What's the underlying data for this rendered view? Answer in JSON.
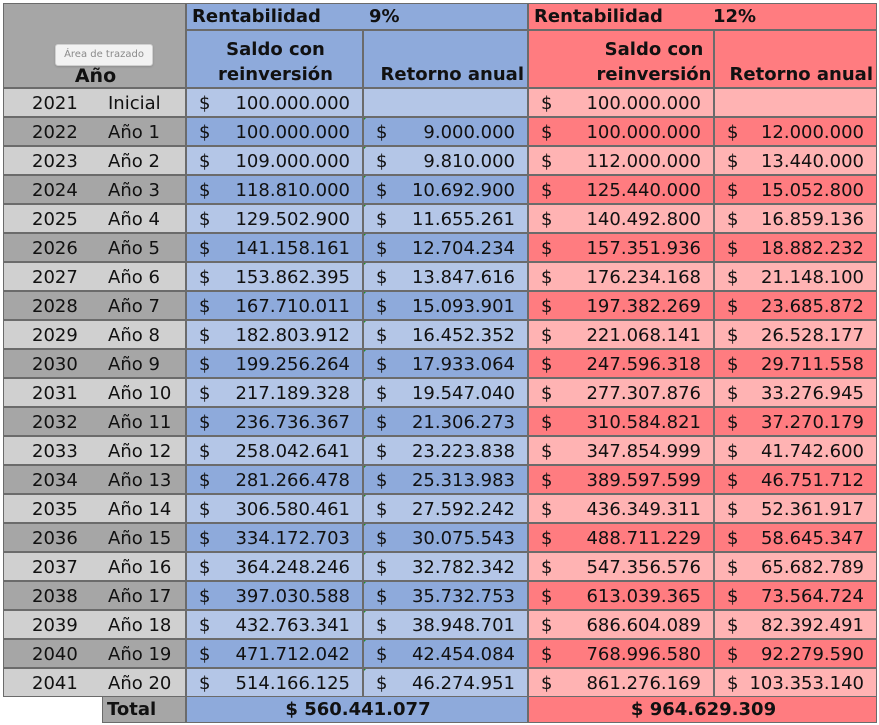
{
  "header": {
    "year_col_label": "Año",
    "tooltip": "Área de trazado",
    "scenario_9": {
      "label": "Rentabilidad",
      "rate": "9%",
      "col_balance": [
        "Saldo con",
        "reinversión"
      ],
      "col_return": "Retorno anual"
    },
    "scenario_12": {
      "label": "Rentabilidad",
      "rate": "12%",
      "col_balance": [
        "Saldo con",
        "reinversión"
      ],
      "col_return": "Retorno anual"
    }
  },
  "currency_symbol": "$",
  "colors": {
    "blue_dark": "#8eaadb",
    "blue_light": "#b4c6e7",
    "red_dark": "#ff7c80",
    "red_light": "#ffb3b3",
    "gray_dark": "#a6a6a6",
    "gray_light": "#d0d0d0",
    "header_gray": "#a6a6a6"
  },
  "rows": [
    {
      "year": "2021",
      "label": "Inicial",
      "b9": "100.000.000",
      "r9": "",
      "b12": "100.000.000",
      "r12": ""
    },
    {
      "year": "2022",
      "label": "Año 1",
      "b9": "100.000.000",
      "r9": "9.000.000",
      "b12": "100.000.000",
      "r12": "12.000.000"
    },
    {
      "year": "2023",
      "label": "Año 2",
      "b9": "109.000.000",
      "r9": "9.810.000",
      "b12": "112.000.000",
      "r12": "13.440.000"
    },
    {
      "year": "2024",
      "label": "Año 3",
      "b9": "118.810.000",
      "r9": "10.692.900",
      "b12": "125.440.000",
      "r12": "15.052.800"
    },
    {
      "year": "2025",
      "label": "Año 4",
      "b9": "129.502.900",
      "r9": "11.655.261",
      "b12": "140.492.800",
      "r12": "16.859.136"
    },
    {
      "year": "2026",
      "label": "Año 5",
      "b9": "141.158.161",
      "r9": "12.704.234",
      "b12": "157.351.936",
      "r12": "18.882.232"
    },
    {
      "year": "2027",
      "label": "Año 6",
      "b9": "153.862.395",
      "r9": "13.847.616",
      "b12": "176.234.168",
      "r12": "21.148.100"
    },
    {
      "year": "2028",
      "label": "Año 7",
      "b9": "167.710.011",
      "r9": "15.093.901",
      "b12": "197.382.269",
      "r12": "23.685.872"
    },
    {
      "year": "2029",
      "label": "Año 8",
      "b9": "182.803.912",
      "r9": "16.452.352",
      "b12": "221.068.141",
      "r12": "26.528.177"
    },
    {
      "year": "2030",
      "label": "Año 9",
      "b9": "199.256.264",
      "r9": "17.933.064",
      "b12": "247.596.318",
      "r12": "29.711.558"
    },
    {
      "year": "2031",
      "label": "Año 10",
      "b9": "217.189.328",
      "r9": "19.547.040",
      "b12": "277.307.876",
      "r12": "33.276.945"
    },
    {
      "year": "2032",
      "label": "Año 11",
      "b9": "236.736.367",
      "r9": "21.306.273",
      "b12": "310.584.821",
      "r12": "37.270.179"
    },
    {
      "year": "2033",
      "label": "Año 12",
      "b9": "258.042.641",
      "r9": "23.223.838",
      "b12": "347.854.999",
      "r12": "41.742.600"
    },
    {
      "year": "2034",
      "label": "Año 13",
      "b9": "281.266.478",
      "r9": "25.313.983",
      "b12": "389.597.599",
      "r12": "46.751.712"
    },
    {
      "year": "2035",
      "label": "Año 14",
      "b9": "306.580.461",
      "r9": "27.592.242",
      "b12": "436.349.311",
      "r12": "52.361.917"
    },
    {
      "year": "2036",
      "label": "Año 15",
      "b9": "334.172.703",
      "r9": "30.075.543",
      "b12": "488.711.229",
      "r12": "58.645.347"
    },
    {
      "year": "2037",
      "label": "Año 16",
      "b9": "364.248.246",
      "r9": "32.782.342",
      "b12": "547.356.576",
      "r12": "65.682.789"
    },
    {
      "year": "2038",
      "label": "Año 17",
      "b9": "397.030.588",
      "r9": "35.732.753",
      "b12": "613.039.365",
      "r12": "73.564.724"
    },
    {
      "year": "2039",
      "label": "Año 18",
      "b9": "432.763.341",
      "r9": "38.948.701",
      "b12": "686.604.089",
      "r12": "82.392.491"
    },
    {
      "year": "2040",
      "label": "Año 19",
      "b9": "471.712.042",
      "r9": "42.454.084",
      "b12": "768.996.580",
      "r12": "92.279.590"
    },
    {
      "year": "2041",
      "label": "Año 20",
      "b9": "514.166.125",
      "r9": "46.274.951",
      "b12": "861.276.169",
      "r12": "103.353.140"
    }
  ],
  "total": {
    "label": "Total",
    "value_9": "$ 560.441.077",
    "value_12": "$ 964.629.309"
  }
}
